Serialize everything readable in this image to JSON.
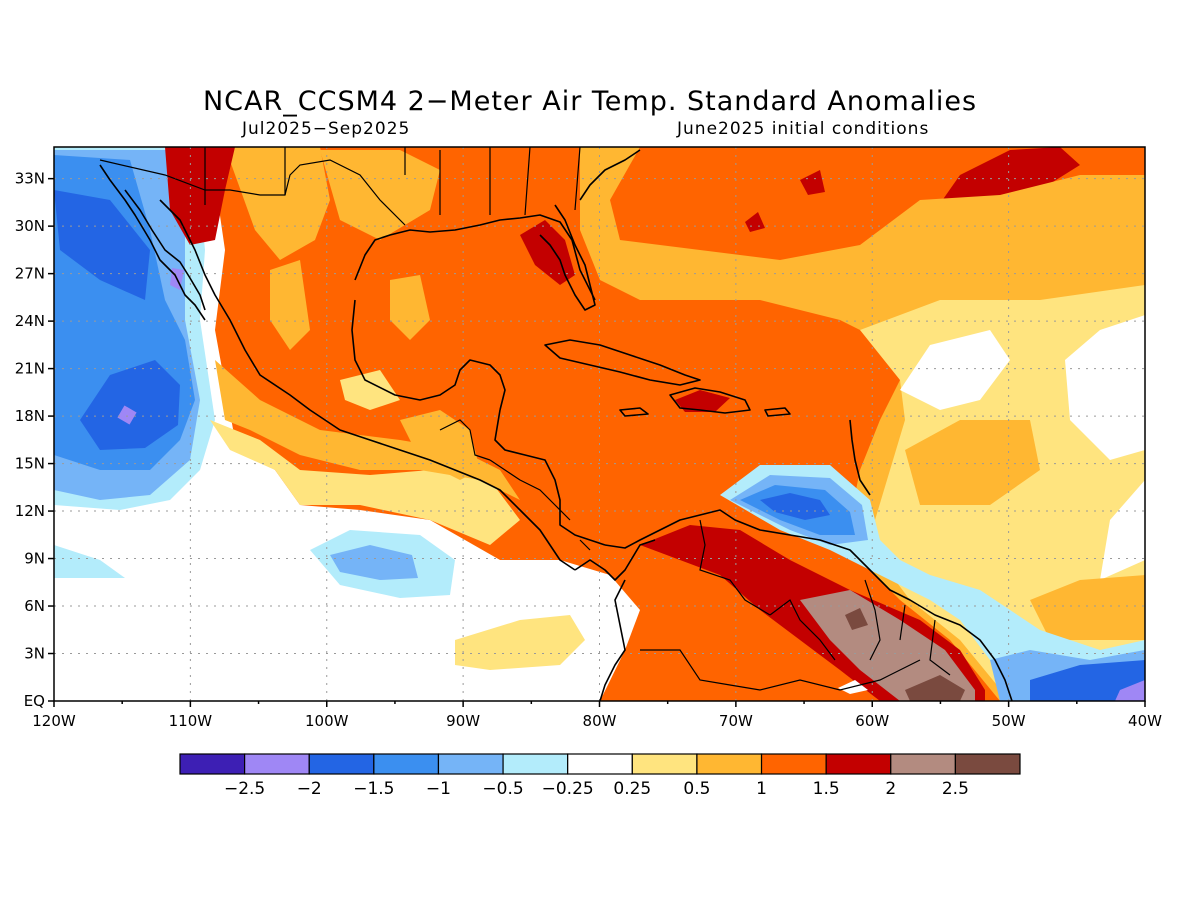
{
  "title": "NCAR_CCSM4 2−Meter Air Temp. Standard Anomalies",
  "subtitle_left": "Jul2025−Sep2025",
  "subtitle_right": "June2025 initial conditions",
  "lon_labels": [
    "120W",
    "110W",
    "100W",
    "90W",
    "80W",
    "70W",
    "60W",
    "50W",
    "40W"
  ],
  "lat_labels": [
    "EQ",
    "3N",
    "6N",
    "9N",
    "12N",
    "15N",
    "18N",
    "21N",
    "24N",
    "27N",
    "30N",
    "33N"
  ],
  "colorbar": {
    "colors": [
      "#3d1fb4",
      "#9f87f5",
      "#2365e4",
      "#3b8ff0",
      "#75b4f7",
      "#b3ecfb",
      "#ffffff",
      "#ffe47f",
      "#ffb732",
      "#ff6400",
      "#c30000",
      "#b38b80",
      "#7a4a3f"
    ],
    "labels": [
      "−2.5",
      "−2",
      "−1.5",
      "−1",
      "−0.5",
      "−0.25",
      "0.25",
      "0.5",
      "1",
      "1.5",
      "2",
      "2.5"
    ]
  },
  "legend_swatch_colors": {
    "very_cold": "#3d1fb4",
    "cold": "#2365e4",
    "neutral": "#ffffff",
    "warm": "#ff6400",
    "hot": "#c30000",
    "very_hot": "#7a4a3f"
  }
}
